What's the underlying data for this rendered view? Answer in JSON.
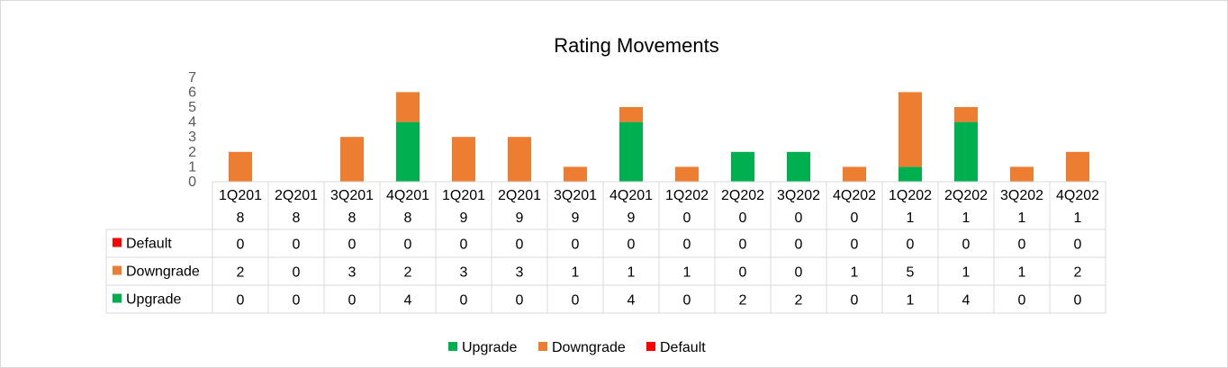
{
  "chart_data": {
    "type": "bar",
    "stacked": true,
    "title": "Rating Movements",
    "categories": [
      "1Q2018",
      "2Q2018",
      "3Q2018",
      "4Q2018",
      "1Q2019",
      "2Q2019",
      "3Q2019",
      "4Q2019",
      "1Q2020",
      "2Q2020",
      "3Q2020",
      "4Q2020",
      "1Q2021",
      "2Q2021",
      "3Q2021",
      "4Q2021"
    ],
    "category_display": [
      [
        "1Q201",
        "8"
      ],
      [
        "2Q201",
        "8"
      ],
      [
        "3Q201",
        "8"
      ],
      [
        "4Q201",
        "8"
      ],
      [
        "1Q201",
        "9"
      ],
      [
        "2Q201",
        "9"
      ],
      [
        "3Q201",
        "9"
      ],
      [
        "4Q201",
        "9"
      ],
      [
        "1Q202",
        "0"
      ],
      [
        "2Q202",
        "0"
      ],
      [
        "3Q202",
        "0"
      ],
      [
        "4Q202",
        "0"
      ],
      [
        "1Q202",
        "1"
      ],
      [
        "2Q202",
        "1"
      ],
      [
        "3Q202",
        "1"
      ],
      [
        "4Q202",
        "1"
      ]
    ],
    "ylim": [
      0,
      7
    ],
    "yticks": [
      "0",
      "1",
      "2",
      "3",
      "4",
      "5",
      "6",
      "7"
    ],
    "series": [
      {
        "name": "Upgrade",
        "color": "#00b050",
        "values": [
          0,
          0,
          0,
          4,
          0,
          0,
          0,
          4,
          0,
          2,
          2,
          0,
          1,
          4,
          0,
          0
        ]
      },
      {
        "name": "Downgrade",
        "color": "#ed7d31",
        "values": [
          2,
          0,
          3,
          2,
          3,
          3,
          1,
          1,
          1,
          0,
          0,
          1,
          5,
          1,
          1,
          2
        ]
      },
      {
        "name": "Default",
        "color": "#ff0000",
        "values": [
          0,
          0,
          0,
          0,
          0,
          0,
          0,
          0,
          0,
          0,
          0,
          0,
          0,
          0,
          0,
          0
        ]
      }
    ],
    "table_row_order": [
      "Default",
      "Downgrade",
      "Upgrade"
    ],
    "legend_order": [
      "Upgrade",
      "Downgrade",
      "Default"
    ],
    "legend_position": "bottom",
    "grid": false
  }
}
